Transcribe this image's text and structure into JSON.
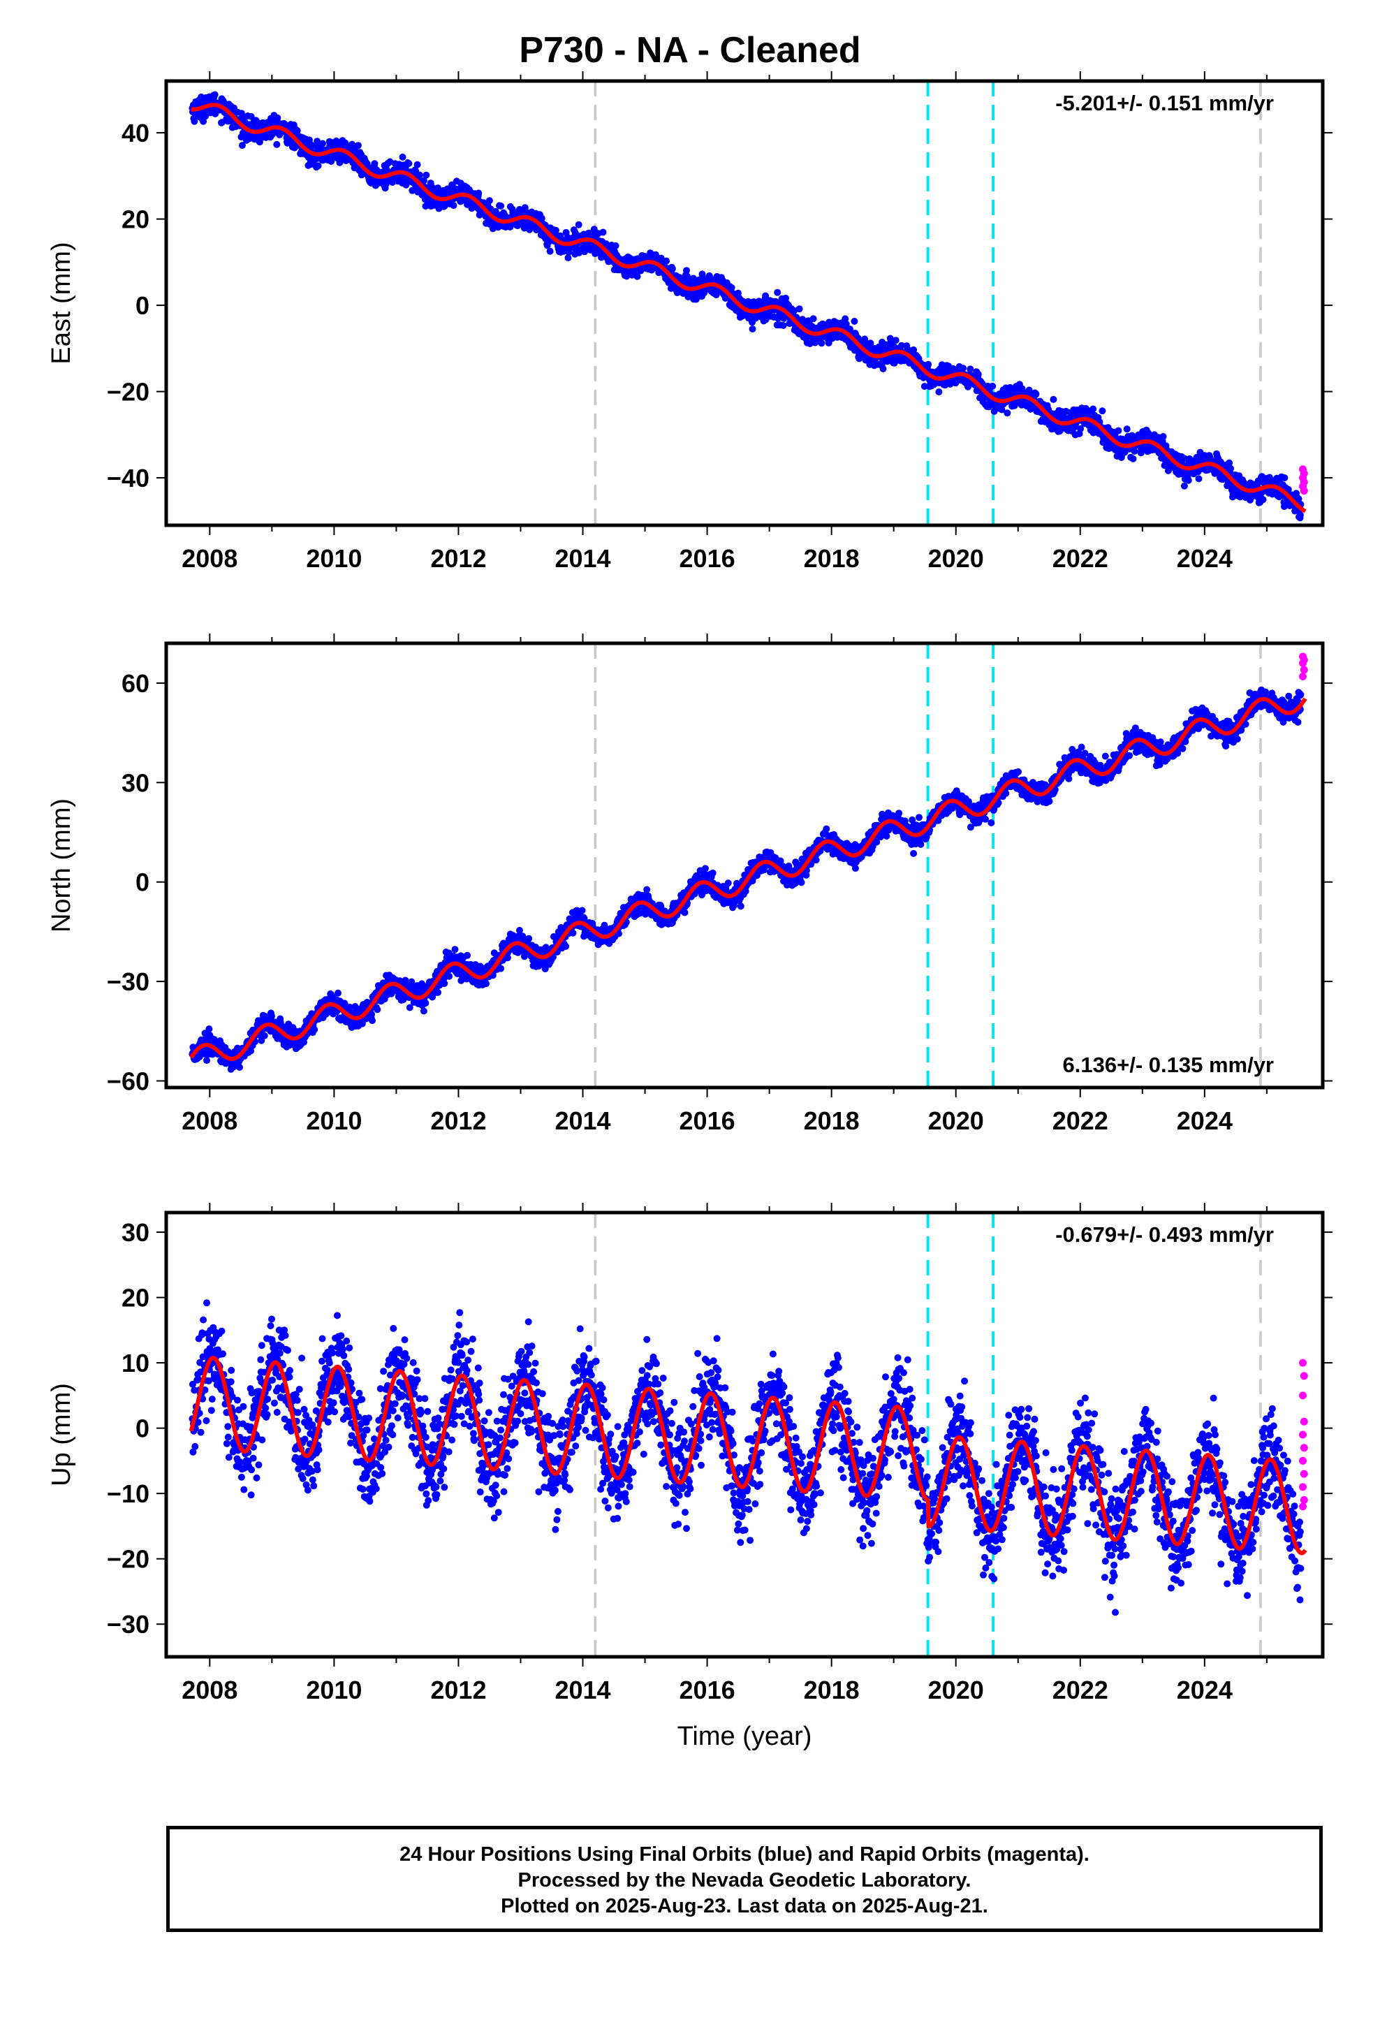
{
  "title": "P730  - NA - Cleaned",
  "xlabel": "Time (year)",
  "footer": {
    "line1": "24 Hour Positions Using Final Orbits (blue) and Rapid Orbits (magenta).",
    "line2": "Processed by the Nevada Geodetic Laboratory.",
    "line3": "Plotted on 2025-Aug-23. Last data on 2025-Aug-21."
  },
  "colors": {
    "final_orbits": "#0000ff",
    "rapid_orbits": "#ff00ff",
    "model_fit": "#ff0000",
    "equipment_change": "#c8c8c8",
    "earthquake": "#00e5ee"
  },
  "chart_data": [
    {
      "type": "scatter",
      "component": "East",
      "ylabel": "East (mm)",
      "xlim": [
        2007.3,
        2025.9
      ],
      "ylim": [
        -51,
        52
      ],
      "yticks": [
        -40,
        -20,
        0,
        20,
        40
      ],
      "xticks": [
        2008,
        2010,
        2012,
        2014,
        2016,
        2018,
        2020,
        2022,
        2024
      ],
      "rate_text": "-5.201+/- 0.151 mm/yr",
      "rate_position": "top-right",
      "model": {
        "start": 2007.7,
        "offset": 47.0,
        "rate": -5.201,
        "seasonal_amplitude": 1.6,
        "phase": 0.6
      },
      "scatter_sd": 1.3,
      "vlines": [
        {
          "x": 2014.2,
          "kind": "equipment_change"
        },
        {
          "x": 2019.55,
          "kind": "earthquake"
        },
        {
          "x": 2020.6,
          "kind": "earthquake"
        },
        {
          "x": 2024.9,
          "kind": "equipment_change"
        }
      ],
      "rapid_orbit_values": [
        -38,
        -39,
        -40,
        -41,
        -42,
        -43
      ]
    },
    {
      "type": "scatter",
      "component": "North",
      "ylabel": "North (mm)",
      "xlim": [
        2007.3,
        2025.9
      ],
      "ylim": [
        -62,
        72
      ],
      "yticks": [
        -60,
        -30,
        0,
        30,
        60
      ],
      "xticks": [
        2008,
        2010,
        2012,
        2014,
        2016,
        2018,
        2020,
        2022,
        2024
      ],
      "rate_text": "6.136+/- 0.135 mm/yr",
      "rate_position": "bottom-right",
      "model": {
        "start": 2007.7,
        "offset": -54.0,
        "rate": 6.136,
        "seasonal_amplitude": 3.5,
        "phase": 2.2
      },
      "scatter_sd": 1.6,
      "vlines": [
        {
          "x": 2014.2,
          "kind": "equipment_change"
        },
        {
          "x": 2019.55,
          "kind": "earthquake"
        },
        {
          "x": 2020.6,
          "kind": "earthquake"
        },
        {
          "x": 2024.9,
          "kind": "equipment_change"
        }
      ],
      "rapid_orbit_values": [
        62,
        64,
        66,
        67,
        68
      ]
    },
    {
      "type": "scatter",
      "component": "Up",
      "ylabel": "Up (mm)",
      "xlim": [
        2007.3,
        2025.9
      ],
      "ylim": [
        -35,
        33
      ],
      "yticks": [
        -30,
        -20,
        -10,
        0,
        10,
        20,
        30
      ],
      "xticks": [
        2008,
        2010,
        2012,
        2014,
        2016,
        2018,
        2020,
        2022,
        2024
      ],
      "rate_text": "-0.679+/- 0.493 mm/yr",
      "rate_position": "top-right",
      "model": {
        "start": 2007.7,
        "offset": 4.0,
        "rate": -0.679,
        "seasonal_amplitude": 7.0,
        "phase": 1.2,
        "step": {
          "x": 2019.55,
          "value": -4.0
        }
      },
      "scatter_sd": 3.6,
      "vlines": [
        {
          "x": 2014.2,
          "kind": "equipment_change"
        },
        {
          "x": 2019.55,
          "kind": "earthquake"
        },
        {
          "x": 2020.6,
          "kind": "earthquake"
        },
        {
          "x": 2024.9,
          "kind": "equipment_change"
        }
      ],
      "rapid_orbit_values": [
        10,
        8,
        5,
        1,
        -1,
        -3,
        -5,
        -7,
        -9,
        -11,
        -12
      ]
    }
  ]
}
